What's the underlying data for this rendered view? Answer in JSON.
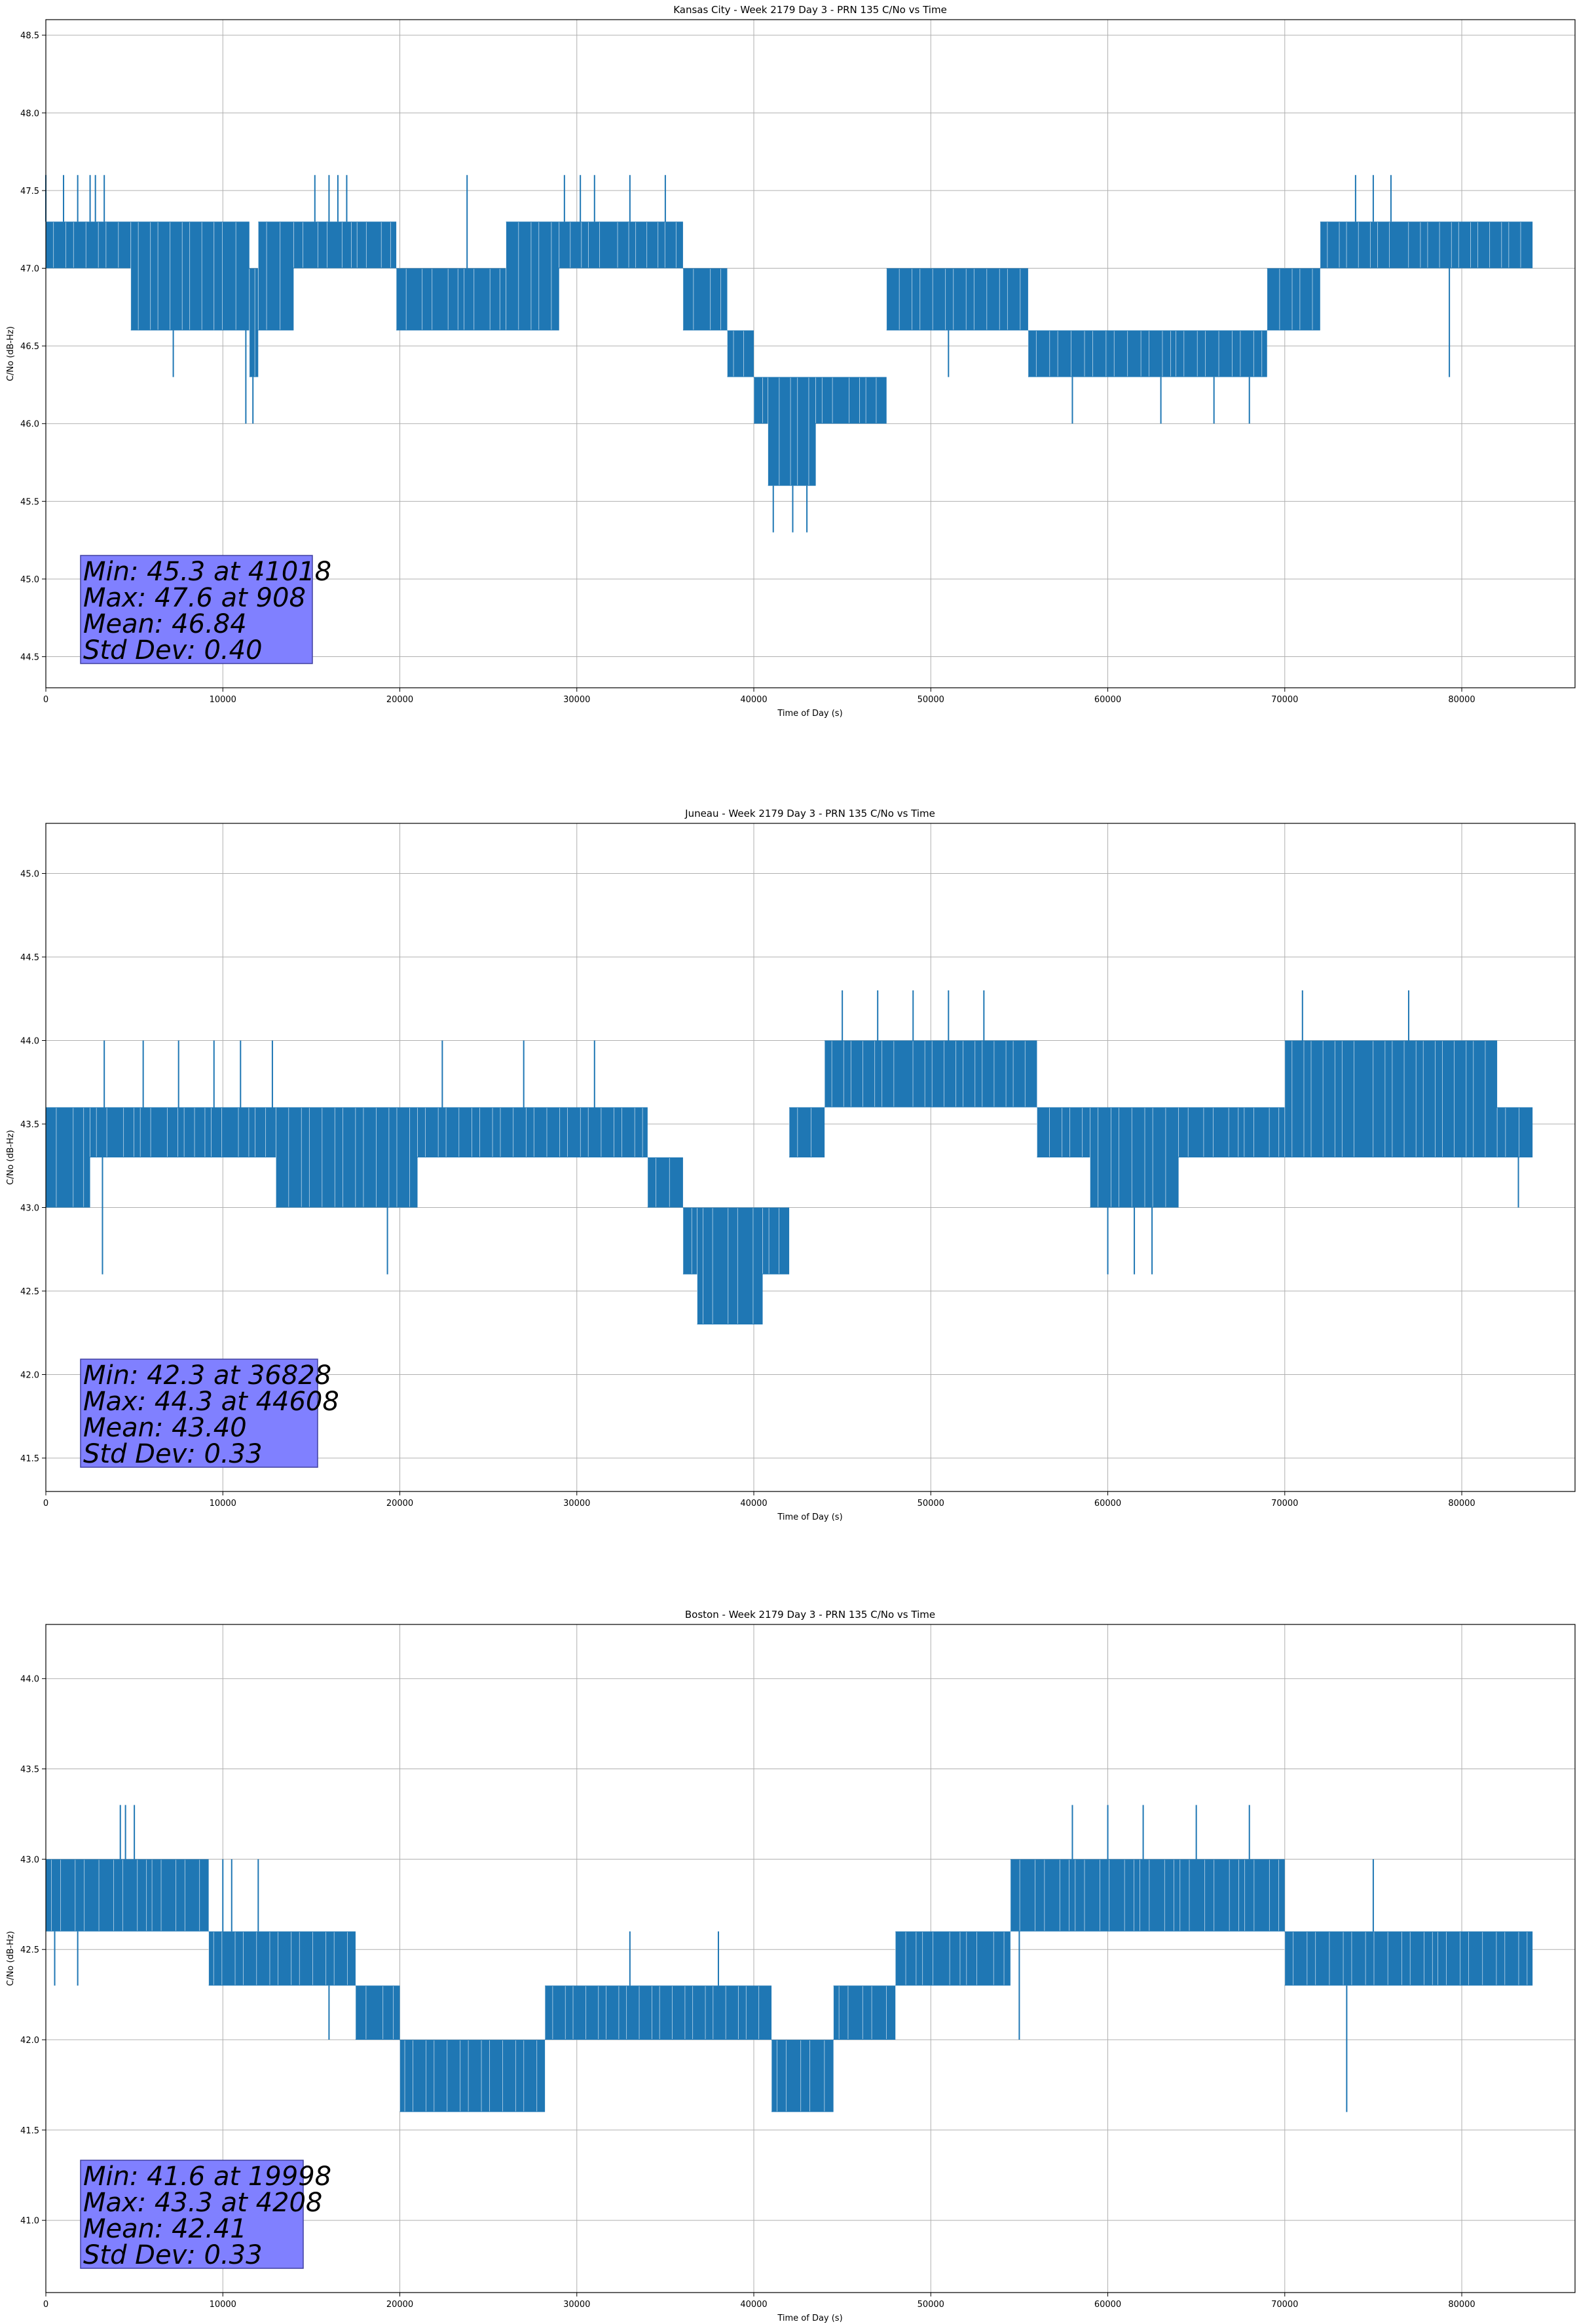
{
  "colors": {
    "series": "#1f77b4",
    "grid": "#b0b0b0",
    "stats_box_fill": "#8080ff",
    "stats_box_edge": "#4040a0",
    "axes": "#000000"
  },
  "chart_data": [
    {
      "type": "line",
      "title": "Kansas City - Week 2179 Day 3 - PRN 135 C/No vs Time",
      "xlabel": "Time of Day (s)",
      "ylabel": "C/No (dB-Hz)",
      "xlim": [
        0,
        86400
      ],
      "ylim": [
        44.3,
        48.6
      ],
      "xticks": [
        0,
        10000,
        20000,
        30000,
        40000,
        50000,
        60000,
        70000,
        80000
      ],
      "xtick_labels": [
        "0",
        "10000",
        "20000",
        "30000",
        "40000",
        "50000",
        "60000",
        "70000",
        "80000"
      ],
      "yticks": [
        44.5,
        45.0,
        45.5,
        46.0,
        46.5,
        47.0,
        47.5,
        48.0,
        48.5
      ],
      "ytick_labels": [
        "44.5",
        "45.0",
        "45.5",
        "46.0",
        "46.5",
        "47.0",
        "47.5",
        "48.0",
        "48.5"
      ],
      "grid": true,
      "series": [
        {
          "name": "C/No",
          "x_end": 84000,
          "bands": [
            {
              "x0": 0,
              "x1": 4800,
              "lo": 47.0,
              "hi": 47.3
            },
            {
              "x0": 4800,
              "x1": 9500,
              "lo": 46.6,
              "hi": 47.3
            },
            {
              "x0": 9500,
              "x1": 11500,
              "lo": 46.6,
              "hi": 47.3
            },
            {
              "x0": 11500,
              "x1": 12000,
              "lo": 46.3,
              "hi": 47.0
            },
            {
              "x0": 12000,
              "x1": 14000,
              "lo": 46.6,
              "hi": 47.3
            },
            {
              "x0": 14000,
              "x1": 19800,
              "lo": 47.0,
              "hi": 47.3
            },
            {
              "x0": 19800,
              "x1": 26000,
              "lo": 46.6,
              "hi": 47.0
            },
            {
              "x0": 26000,
              "x1": 29000,
              "lo": 46.6,
              "hi": 47.3
            },
            {
              "x0": 29000,
              "x1": 36000,
              "lo": 47.0,
              "hi": 47.3
            },
            {
              "x0": 36000,
              "x1": 38500,
              "lo": 46.6,
              "hi": 47.0
            },
            {
              "x0": 38500,
              "x1": 40000,
              "lo": 46.3,
              "hi": 46.6
            },
            {
              "x0": 40000,
              "x1": 40800,
              "lo": 46.0,
              "hi": 46.3
            },
            {
              "x0": 40800,
              "x1": 43500,
              "lo": 45.6,
              "hi": 46.3
            },
            {
              "x0": 43500,
              "x1": 47500,
              "lo": 46.0,
              "hi": 46.3
            },
            {
              "x0": 47500,
              "x1": 55500,
              "lo": 46.6,
              "hi": 47.0
            },
            {
              "x0": 55500,
              "x1": 69000,
              "lo": 46.3,
              "hi": 46.6
            },
            {
              "x0": 69000,
              "x1": 72000,
              "lo": 46.6,
              "hi": 47.0
            },
            {
              "x0": 72000,
              "x1": 84000,
              "lo": 47.0,
              "hi": 47.3
            }
          ],
          "spikes": [
            [
              0,
              47.6
            ],
            [
              1000,
              47.6
            ],
            [
              1800,
              47.6
            ],
            [
              2500,
              47.6
            ],
            [
              2800,
              47.6
            ],
            [
              3300,
              47.6
            ],
            [
              7200,
              46.3
            ],
            [
              11300,
              46.0
            ],
            [
              11700,
              46.0
            ],
            [
              15200,
              47.6
            ],
            [
              16000,
              47.6
            ],
            [
              16500,
              47.6
            ],
            [
              17000,
              47.6
            ],
            [
              23800,
              47.6
            ],
            [
              29300,
              47.6
            ],
            [
              30200,
              47.6
            ],
            [
              31000,
              47.6
            ],
            [
              33000,
              47.6
            ],
            [
              35000,
              47.6
            ],
            [
              41100,
              45.3
            ],
            [
              42200,
              45.3
            ],
            [
              43000,
              45.3
            ],
            [
              51000,
              46.3
            ],
            [
              58000,
              46.0
            ],
            [
              63000,
              46.0
            ],
            [
              66000,
              46.0
            ],
            [
              68000,
              46.0
            ],
            [
              74000,
              47.6
            ],
            [
              75000,
              47.6
            ],
            [
              76000,
              47.6
            ],
            [
              79300,
              46.3
            ]
          ]
        }
      ],
      "stats": {
        "min": "Min: 45.3 at 41018",
        "max": "Max: 47.6 at 908",
        "mean": "Mean: 46.84",
        "std": "Std Dev: 0.40"
      }
    },
    {
      "type": "line",
      "title": "Juneau - Week 2179 Day 3 - PRN 135 C/No vs Time",
      "xlabel": "Time of Day (s)",
      "ylabel": "C/No (dB-Hz)",
      "xlim": [
        0,
        86400
      ],
      "ylim": [
        41.3,
        45.3
      ],
      "xticks": [
        0,
        10000,
        20000,
        30000,
        40000,
        50000,
        60000,
        70000,
        80000
      ],
      "xtick_labels": [
        "0",
        "10000",
        "20000",
        "30000",
        "40000",
        "50000",
        "60000",
        "70000",
        "80000"
      ],
      "yticks": [
        41.5,
        42.0,
        42.5,
        43.0,
        43.5,
        44.0,
        44.5,
        45.0
      ],
      "ytick_labels": [
        "41.5",
        "42.0",
        "42.5",
        "43.0",
        "43.5",
        "44.0",
        "44.5",
        "45.0"
      ],
      "grid": true,
      "series": [
        {
          "name": "C/No",
          "x_end": 84000,
          "bands": [
            {
              "x0": 0,
              "x1": 2500,
              "lo": 43.0,
              "hi": 43.6
            },
            {
              "x0": 2500,
              "x1": 13000,
              "lo": 43.3,
              "hi": 43.6
            },
            {
              "x0": 13000,
              "x1": 21000,
              "lo": 43.0,
              "hi": 43.6
            },
            {
              "x0": 21000,
              "x1": 34000,
              "lo": 43.3,
              "hi": 43.6
            },
            {
              "x0": 34000,
              "x1": 36000,
              "lo": 43.0,
              "hi": 43.3
            },
            {
              "x0": 36000,
              "x1": 36800,
              "lo": 42.6,
              "hi": 43.0
            },
            {
              "x0": 36800,
              "x1": 40500,
              "lo": 42.3,
              "hi": 43.0
            },
            {
              "x0": 40500,
              "x1": 42000,
              "lo": 42.6,
              "hi": 43.0
            },
            {
              "x0": 42000,
              "x1": 44000,
              "lo": 43.3,
              "hi": 43.6
            },
            {
              "x0": 44000,
              "x1": 56000,
              "lo": 43.6,
              "hi": 44.0
            },
            {
              "x0": 56000,
              "x1": 59000,
              "lo": 43.3,
              "hi": 43.6
            },
            {
              "x0": 59000,
              "x1": 64000,
              "lo": 43.0,
              "hi": 43.6
            },
            {
              "x0": 64000,
              "x1": 70000,
              "lo": 43.3,
              "hi": 43.6
            },
            {
              "x0": 70000,
              "x1": 82000,
              "lo": 43.3,
              "hi": 44.0
            },
            {
              "x0": 82000,
              "x1": 84000,
              "lo": 43.3,
              "hi": 43.6
            }
          ],
          "spikes": [
            [
              3200,
              42.6
            ],
            [
              3300,
              44.0
            ],
            [
              5500,
              44.0
            ],
            [
              7500,
              44.0
            ],
            [
              9500,
              44.0
            ],
            [
              11000,
              44.0
            ],
            [
              12800,
              44.0
            ],
            [
              19300,
              42.6
            ],
            [
              22400,
              44.0
            ],
            [
              27000,
              44.0
            ],
            [
              31000,
              44.0
            ],
            [
              45000,
              44.3
            ],
            [
              47000,
              44.3
            ],
            [
              49000,
              44.3
            ],
            [
              51000,
              44.3
            ],
            [
              53000,
              44.3
            ],
            [
              60000,
              42.6
            ],
            [
              61500,
              42.6
            ],
            [
              62500,
              42.6
            ],
            [
              71000,
              44.3
            ],
            [
              77000,
              44.3
            ],
            [
              83200,
              43.0
            ]
          ]
        }
      ],
      "stats": {
        "min": "Min: 42.3 at 36828",
        "max": "Max: 44.3 at 44608",
        "mean": "Mean: 43.40",
        "std": "Std Dev: 0.33"
      }
    },
    {
      "type": "line",
      "title": "Boston - Week 2179 Day 3 - PRN 135 C/No vs Time",
      "xlabel": "Time of Day (s)",
      "ylabel": "C/No (dB-Hz)",
      "xlim": [
        0,
        86400
      ],
      "ylim": [
        40.6,
        44.3
      ],
      "xticks": [
        0,
        10000,
        20000,
        30000,
        40000,
        50000,
        60000,
        70000,
        80000
      ],
      "xtick_labels": [
        "0",
        "10000",
        "20000",
        "30000",
        "40000",
        "50000",
        "60000",
        "70000",
        "80000"
      ],
      "yticks": [
        41.0,
        41.5,
        42.0,
        42.5,
        43.0,
        43.5,
        44.0
      ],
      "ytick_labels": [
        "41.0",
        "41.5",
        "42.0",
        "42.5",
        "43.0",
        "43.5",
        "44.0"
      ],
      "grid": true,
      "series": [
        {
          "name": "C/No",
          "x_end": 84000,
          "bands": [
            {
              "x0": 0,
              "x1": 9200,
              "lo": 42.6,
              "hi": 43.0
            },
            {
              "x0": 9200,
              "x1": 17500,
              "lo": 42.3,
              "hi": 42.6
            },
            {
              "x0": 17500,
              "x1": 20000,
              "lo": 42.0,
              "hi": 42.3
            },
            {
              "x0": 20000,
              "x1": 28200,
              "lo": 41.6,
              "hi": 42.0
            },
            {
              "x0": 28200,
              "x1": 41000,
              "lo": 42.0,
              "hi": 42.3
            },
            {
              "x0": 41000,
              "x1": 44500,
              "lo": 41.6,
              "hi": 42.0
            },
            {
              "x0": 44500,
              "x1": 48000,
              "lo": 42.0,
              "hi": 42.3
            },
            {
              "x0": 48000,
              "x1": 54500,
              "lo": 42.3,
              "hi": 42.6
            },
            {
              "x0": 54500,
              "x1": 70000,
              "lo": 42.6,
              "hi": 43.0
            },
            {
              "x0": 70000,
              "x1": 84000,
              "lo": 42.3,
              "hi": 42.6
            }
          ],
          "spikes": [
            [
              500,
              42.3
            ],
            [
              1800,
              42.3
            ],
            [
              4208,
              43.3
            ],
            [
              4500,
              43.3
            ],
            [
              5000,
              43.3
            ],
            [
              10000,
              43.0
            ],
            [
              10500,
              43.0
            ],
            [
              12000,
              43.0
            ],
            [
              16000,
              42.0
            ],
            [
              19000,
              42.0
            ],
            [
              33000,
              42.6
            ],
            [
              38000,
              42.6
            ],
            [
              41500,
              41.6
            ],
            [
              55000,
              42.0
            ],
            [
              58000,
              43.3
            ],
            [
              60000,
              43.3
            ],
            [
              62000,
              43.3
            ],
            [
              65000,
              43.3
            ],
            [
              68000,
              43.3
            ],
            [
              73500,
              41.6
            ],
            [
              75000,
              43.0
            ]
          ]
        }
      ],
      "stats": {
        "min": "Min: 41.6 at 19998",
        "max": "Max: 43.3 at 4208",
        "mean": "Mean: 42.41",
        "std": "Std Dev: 0.33"
      }
    }
  ]
}
